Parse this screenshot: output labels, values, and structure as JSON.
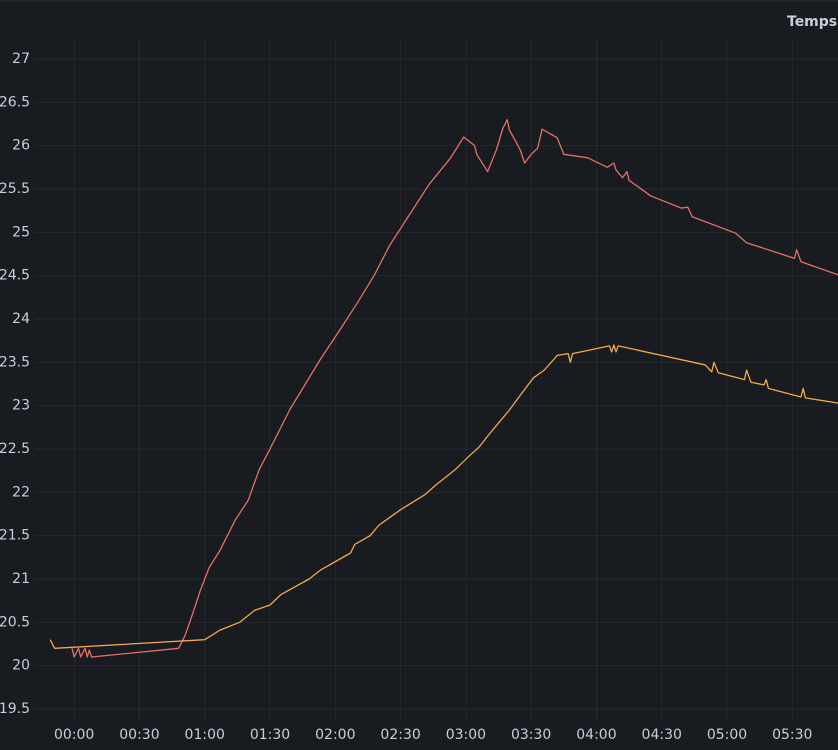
{
  "chart_data": {
    "type": "line",
    "title": "Temps",
    "xlim": [
      -18,
      351
    ],
    "xticks": [
      {
        "value": 0,
        "label": "00:00"
      },
      {
        "value": 30,
        "label": "00:30"
      },
      {
        "value": 60,
        "label": "01:00"
      },
      {
        "value": 90,
        "label": "01:30"
      },
      {
        "value": 120,
        "label": "02:00"
      },
      {
        "value": 150,
        "label": "02:30"
      },
      {
        "value": 180,
        "label": "03:00"
      },
      {
        "value": 210,
        "label": "03:30"
      },
      {
        "value": 240,
        "label": "04:00"
      },
      {
        "value": 270,
        "label": "04:30"
      },
      {
        "value": 300,
        "label": "05:00"
      },
      {
        "value": 330,
        "label": "05:30"
      }
    ],
    "ylim": [
      19.5,
      27
    ],
    "yticks": [
      19.5,
      20,
      20.5,
      21,
      21.5,
      22,
      22.5,
      23,
      23.5,
      24,
      24.5,
      25,
      25.5,
      26,
      26.5,
      27
    ],
    "grid": true,
    "series": [
      {
        "color": "#e5706a",
        "x": [
          -1,
          0,
          2,
          3,
          5,
          6,
          7,
          8,
          48,
          51,
          55,
          58,
          62,
          67,
          74,
          80,
          85,
          92,
          99,
          106,
          113,
          122,
          131,
          138,
          145,
          154,
          163,
          173,
          179,
          184,
          185,
          190,
          194,
          197,
          199,
          200,
          202,
          205,
          207,
          210,
          213,
          215,
          222,
          225,
          236,
          245,
          248,
          249,
          252,
          254,
          255,
          265,
          279,
          282,
          284,
          304,
          309,
          331,
          332,
          334,
          351
        ],
        "values": [
          20.2,
          20.1,
          20.2,
          20.1,
          20.2,
          20.1,
          20.18,
          20.1,
          20.2,
          20.35,
          20.64,
          20.87,
          21.13,
          21.33,
          21.68,
          21.91,
          22.26,
          22.6,
          22.95,
          23.24,
          23.53,
          23.87,
          24.22,
          24.51,
          24.85,
          25.2,
          25.55,
          25.86,
          26.1,
          26.0,
          25.9,
          25.7,
          25.95,
          26.2,
          26.3,
          26.18,
          26.09,
          25.95,
          25.8,
          25.9,
          25.97,
          26.19,
          26.09,
          25.9,
          25.86,
          25.75,
          25.8,
          25.72,
          25.63,
          25.7,
          25.6,
          25.42,
          25.28,
          25.29,
          25.18,
          24.99,
          24.88,
          24.7,
          24.8,
          24.66,
          24.51
        ]
      },
      {
        "color": "#f2a84e",
        "x": [
          -11,
          -9,
          60,
          67,
          76,
          83,
          90,
          95,
          108,
          113,
          127,
          129,
          136,
          140,
          150,
          161,
          166,
          175,
          182,
          186,
          191,
          196,
          200,
          205,
          211,
          216,
          222,
          227,
          228,
          229,
          246,
          247,
          248,
          249,
          250,
          290,
          293,
          294,
          296,
          308,
          309,
          311,
          317,
          318,
          319,
          334,
          335,
          336,
          351
        ],
        "values": [
          20.3,
          20.2,
          20.3,
          20.41,
          20.5,
          20.64,
          20.7,
          20.82,
          21.0,
          21.1,
          21.3,
          21.4,
          21.5,
          21.62,
          21.8,
          21.97,
          22.08,
          22.26,
          22.43,
          22.52,
          22.68,
          22.83,
          22.95,
          23.12,
          23.32,
          23.41,
          23.58,
          23.6,
          23.5,
          23.6,
          23.69,
          23.62,
          23.7,
          23.62,
          23.69,
          23.47,
          23.39,
          23.5,
          23.38,
          23.3,
          23.41,
          23.27,
          23.24,
          23.3,
          23.2,
          23.1,
          23.2,
          23.09,
          23.03
        ]
      }
    ]
  }
}
